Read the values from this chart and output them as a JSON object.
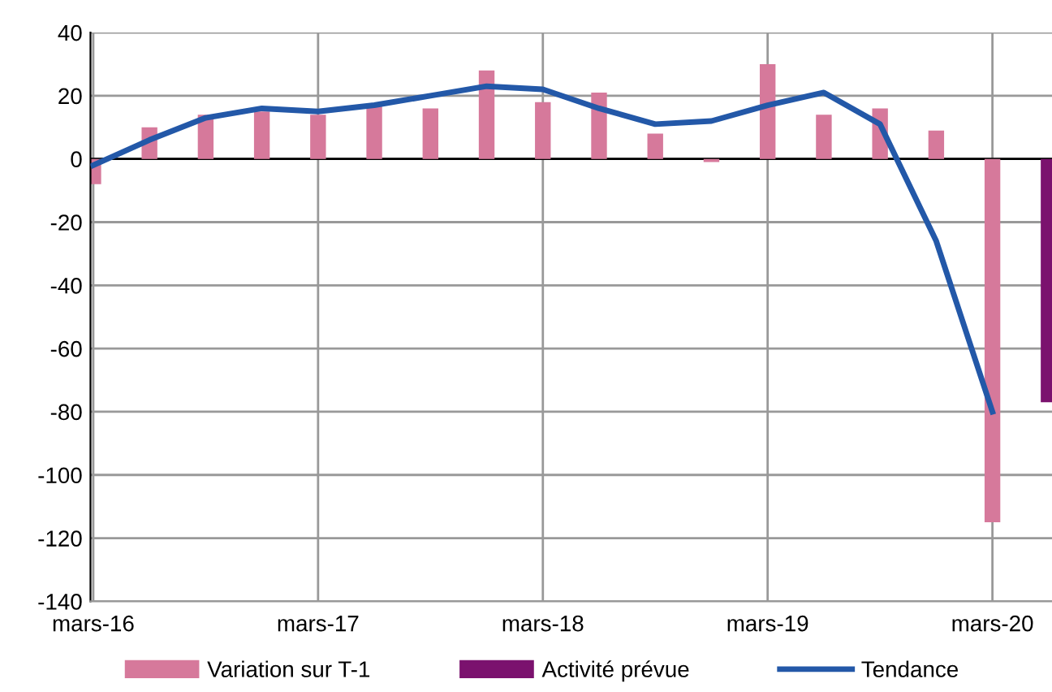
{
  "chart_data": {
    "type": "bar",
    "categories": [
      "mars-16",
      null,
      null,
      null,
      "mars-17",
      null,
      null,
      null,
      "mars-18",
      null,
      null,
      null,
      "mars-19",
      null,
      null,
      null,
      "mars-20",
      null
    ],
    "series": [
      {
        "name": "Variation sur T-1",
        "color": "#d6799b",
        "values": [
          -8,
          10,
          14,
          15,
          14,
          17,
          16,
          28,
          18,
          21,
          8,
          -1,
          30,
          14,
          16,
          9,
          -115,
          null
        ]
      },
      {
        "name": "Activité prévue",
        "color": "#7b126e",
        "values": [
          null,
          null,
          null,
          null,
          null,
          null,
          null,
          null,
          null,
          null,
          null,
          null,
          null,
          null,
          null,
          null,
          null,
          -77
        ]
      },
      {
        "name": "Tendance",
        "type": "line",
        "color": "#2358a8",
        "values": [
          -2,
          6,
          13,
          16,
          15,
          17,
          20,
          23,
          22,
          16,
          11,
          12,
          17,
          21,
          11,
          -26,
          -80,
          null
        ]
      }
    ],
    "ylim": [
      -140,
      40
    ],
    "yticks": [
      -140,
      -120,
      -100,
      -80,
      -60,
      -40,
      -20,
      0,
      20,
      40
    ],
    "grid": true,
    "legend": "bottom"
  }
}
